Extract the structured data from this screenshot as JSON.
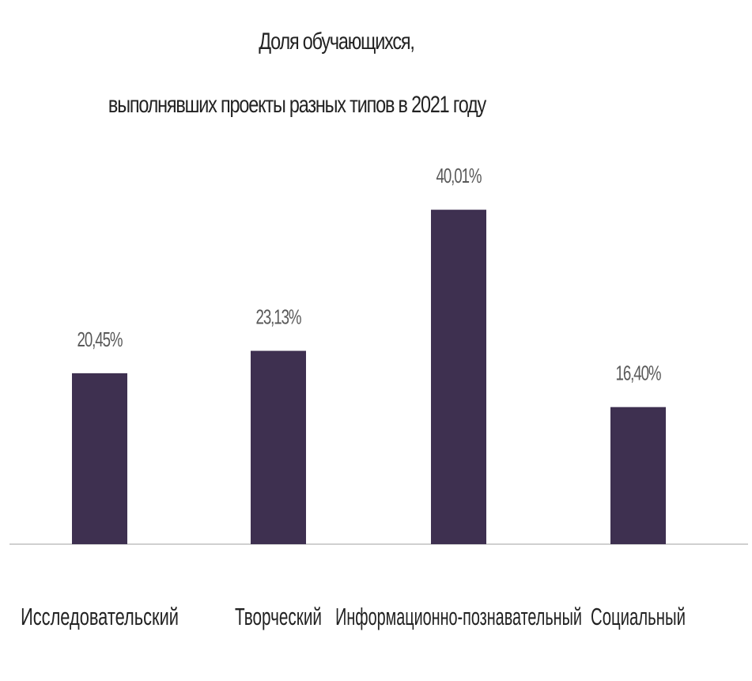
{
  "colors": {
    "bar": "#3e3050",
    "axis": "#d0d0d0",
    "text": "#222222",
    "label": "#595959"
  },
  "chart_data": {
    "type": "bar",
    "title": "Доля обучающихся, выполнявших проекты разных типов в 2021 году",
    "title_lines": [
      "Доля обучающихся,",
      "выполнявших проекты разных типов в 2021 году"
    ],
    "categories": [
      "Исследовательский",
      "Творческий",
      "Информационно-познавательный",
      "Социальный"
    ],
    "values": [
      20.45,
      23.13,
      40.01,
      16.4
    ],
    "data_labels": [
      "20,45%",
      "23,13%",
      "40,01%",
      "16,40%"
    ],
    "unit": "%",
    "ylim": [
      0,
      44
    ],
    "grid": false,
    "legend": "none",
    "xlabel": "",
    "ylabel": ""
  }
}
